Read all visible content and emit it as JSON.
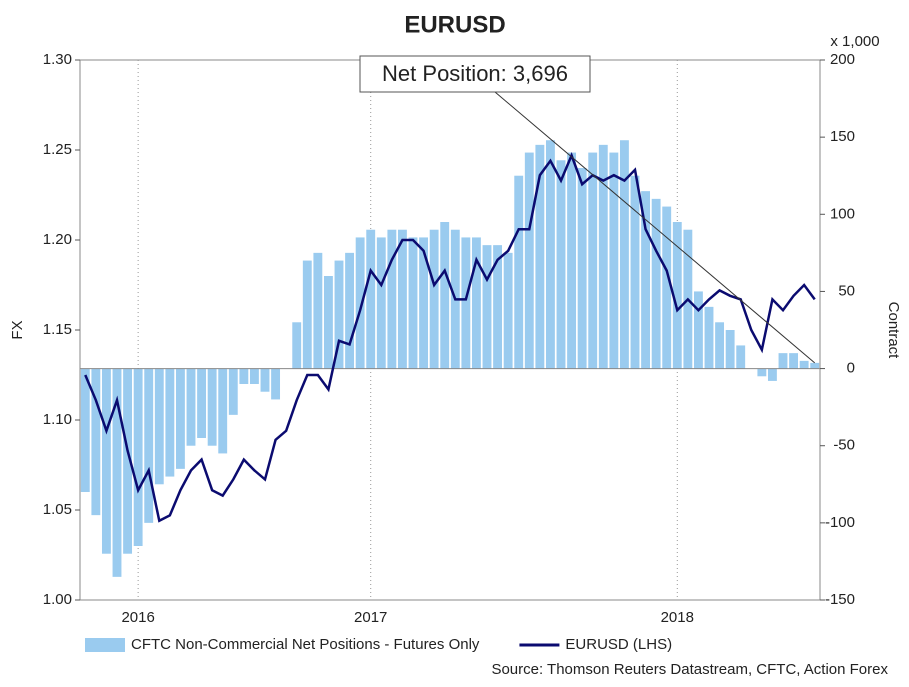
{
  "chart_data": {
    "type": "bar-line",
    "title": "EURUSD",
    "y_label": "FX",
    "y2_label": "Contract",
    "y2_unit": "x 1,000",
    "annotation": "Net Position: 3,696",
    "source": "Source: Thomson Reuters Datastream, CFTC, Action Forex",
    "categories": [
      null,
      null,
      null,
      null,
      null,
      "2016",
      null,
      null,
      null,
      null,
      null,
      null,
      null,
      null,
      null,
      null,
      null,
      null,
      null,
      null,
      null,
      null,
      null,
      null,
      null,
      null,
      null,
      "2017",
      null,
      null,
      null,
      null,
      null,
      null,
      null,
      null,
      null,
      null,
      null,
      null,
      null,
      null,
      null,
      null,
      null,
      null,
      null,
      null,
      null,
      null,
      null,
      null,
      null,
      null,
      null,
      null,
      "2018",
      null,
      null,
      null,
      null,
      null,
      null,
      null,
      null,
      null,
      null,
      null,
      null,
      null
    ],
    "series": [
      {
        "name": "CFTC Non-Commercial Net Positions - Futures Only",
        "type": "bar",
        "axis": "y2",
        "color": "#9acbef",
        "values": [
          -80,
          -95,
          -120,
          -135,
          -120,
          -115,
          -100,
          -75,
          -70,
          -65,
          -50,
          -45,
          -50,
          -55,
          -30,
          -10,
          -10,
          -15,
          -20,
          0,
          30,
          70,
          75,
          60,
          70,
          75,
          85,
          90,
          85,
          90,
          90,
          85,
          85,
          90,
          95,
          90,
          85,
          85,
          80,
          80,
          75,
          125,
          140,
          145,
          148,
          135,
          140,
          130,
          140,
          145,
          140,
          148,
          125,
          115,
          110,
          105,
          95,
          90,
          50,
          40,
          30,
          25,
          15,
          0,
          -5,
          -8,
          10,
          10,
          5,
          3.696
        ]
      },
      {
        "name": "EURUSD (LHS)",
        "type": "line",
        "axis": "y",
        "color": "#0b0b70",
        "values": [
          1.125,
          1.111,
          1.094,
          1.111,
          1.083,
          1.061,
          1.072,
          1.044,
          1.047,
          1.061,
          1.072,
          1.078,
          1.061,
          1.058,
          1.067,
          1.078,
          1.072,
          1.067,
          1.089,
          1.094,
          1.111,
          1.125,
          1.125,
          1.117,
          1.144,
          1.142,
          1.161,
          1.183,
          1.175,
          1.189,
          1.2,
          1.2,
          1.194,
          1.175,
          1.183,
          1.167,
          1.167,
          1.189,
          1.178,
          1.189,
          1.194,
          1.206,
          1.206,
          1.236,
          1.244,
          1.233,
          1.247,
          1.231,
          1.236,
          1.233,
          1.236,
          1.233,
          1.239,
          1.206,
          1.194,
          1.183,
          1.161,
          1.167,
          1.161,
          1.167,
          1.172,
          1.169,
          1.167,
          1.15,
          1.139,
          1.167,
          1.161,
          1.169,
          1.175,
          1.167
        ]
      }
    ],
    "ylim": [
      1.0,
      1.3
    ],
    "yticks": [
      {
        "value": 1.0,
        "label": "1.00"
      },
      1.05,
      {
        "value": 1.1,
        "label": "1.10"
      },
      1.15,
      {
        "value": 1.2,
        "label": "1.20"
      },
      1.25,
      {
        "value": 1.3,
        "label": "1.30"
      }
    ],
    "y2lim": [
      -150,
      200
    ],
    "y2ticks": [
      -150,
      -100,
      -50,
      0,
      50,
      100,
      150,
      200
    ],
    "grid": "x"
  }
}
